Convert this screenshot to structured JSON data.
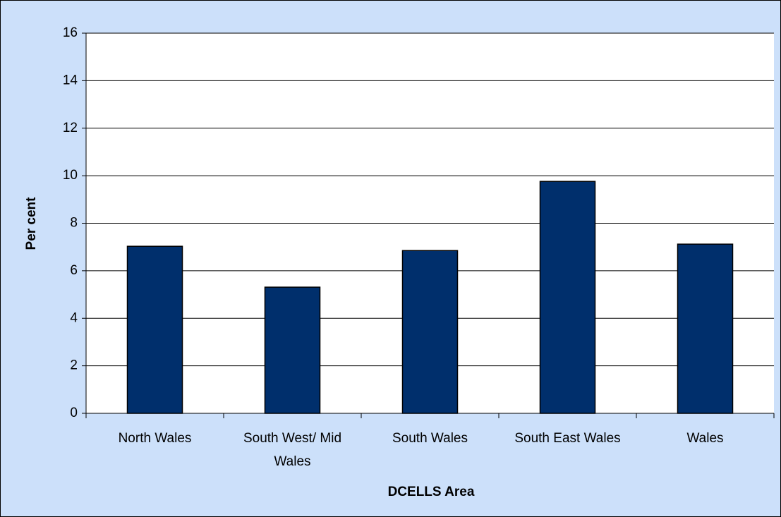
{
  "chart_data": {
    "type": "bar",
    "x_label": "DCELLS Area",
    "y_label": "Per cent",
    "categories": [
      "North Wales",
      "South West/ Mid Wales",
      "South Wales",
      "South East Wales",
      "Wales"
    ],
    "values": [
      7.03,
      5.31,
      6.85,
      9.76,
      7.12
    ],
    "color": "#002f6c",
    "ylim": [
      0,
      16
    ],
    "yticks": [
      0,
      2,
      4,
      6,
      8,
      10,
      12,
      14,
      16
    ],
    "grid": true
  }
}
